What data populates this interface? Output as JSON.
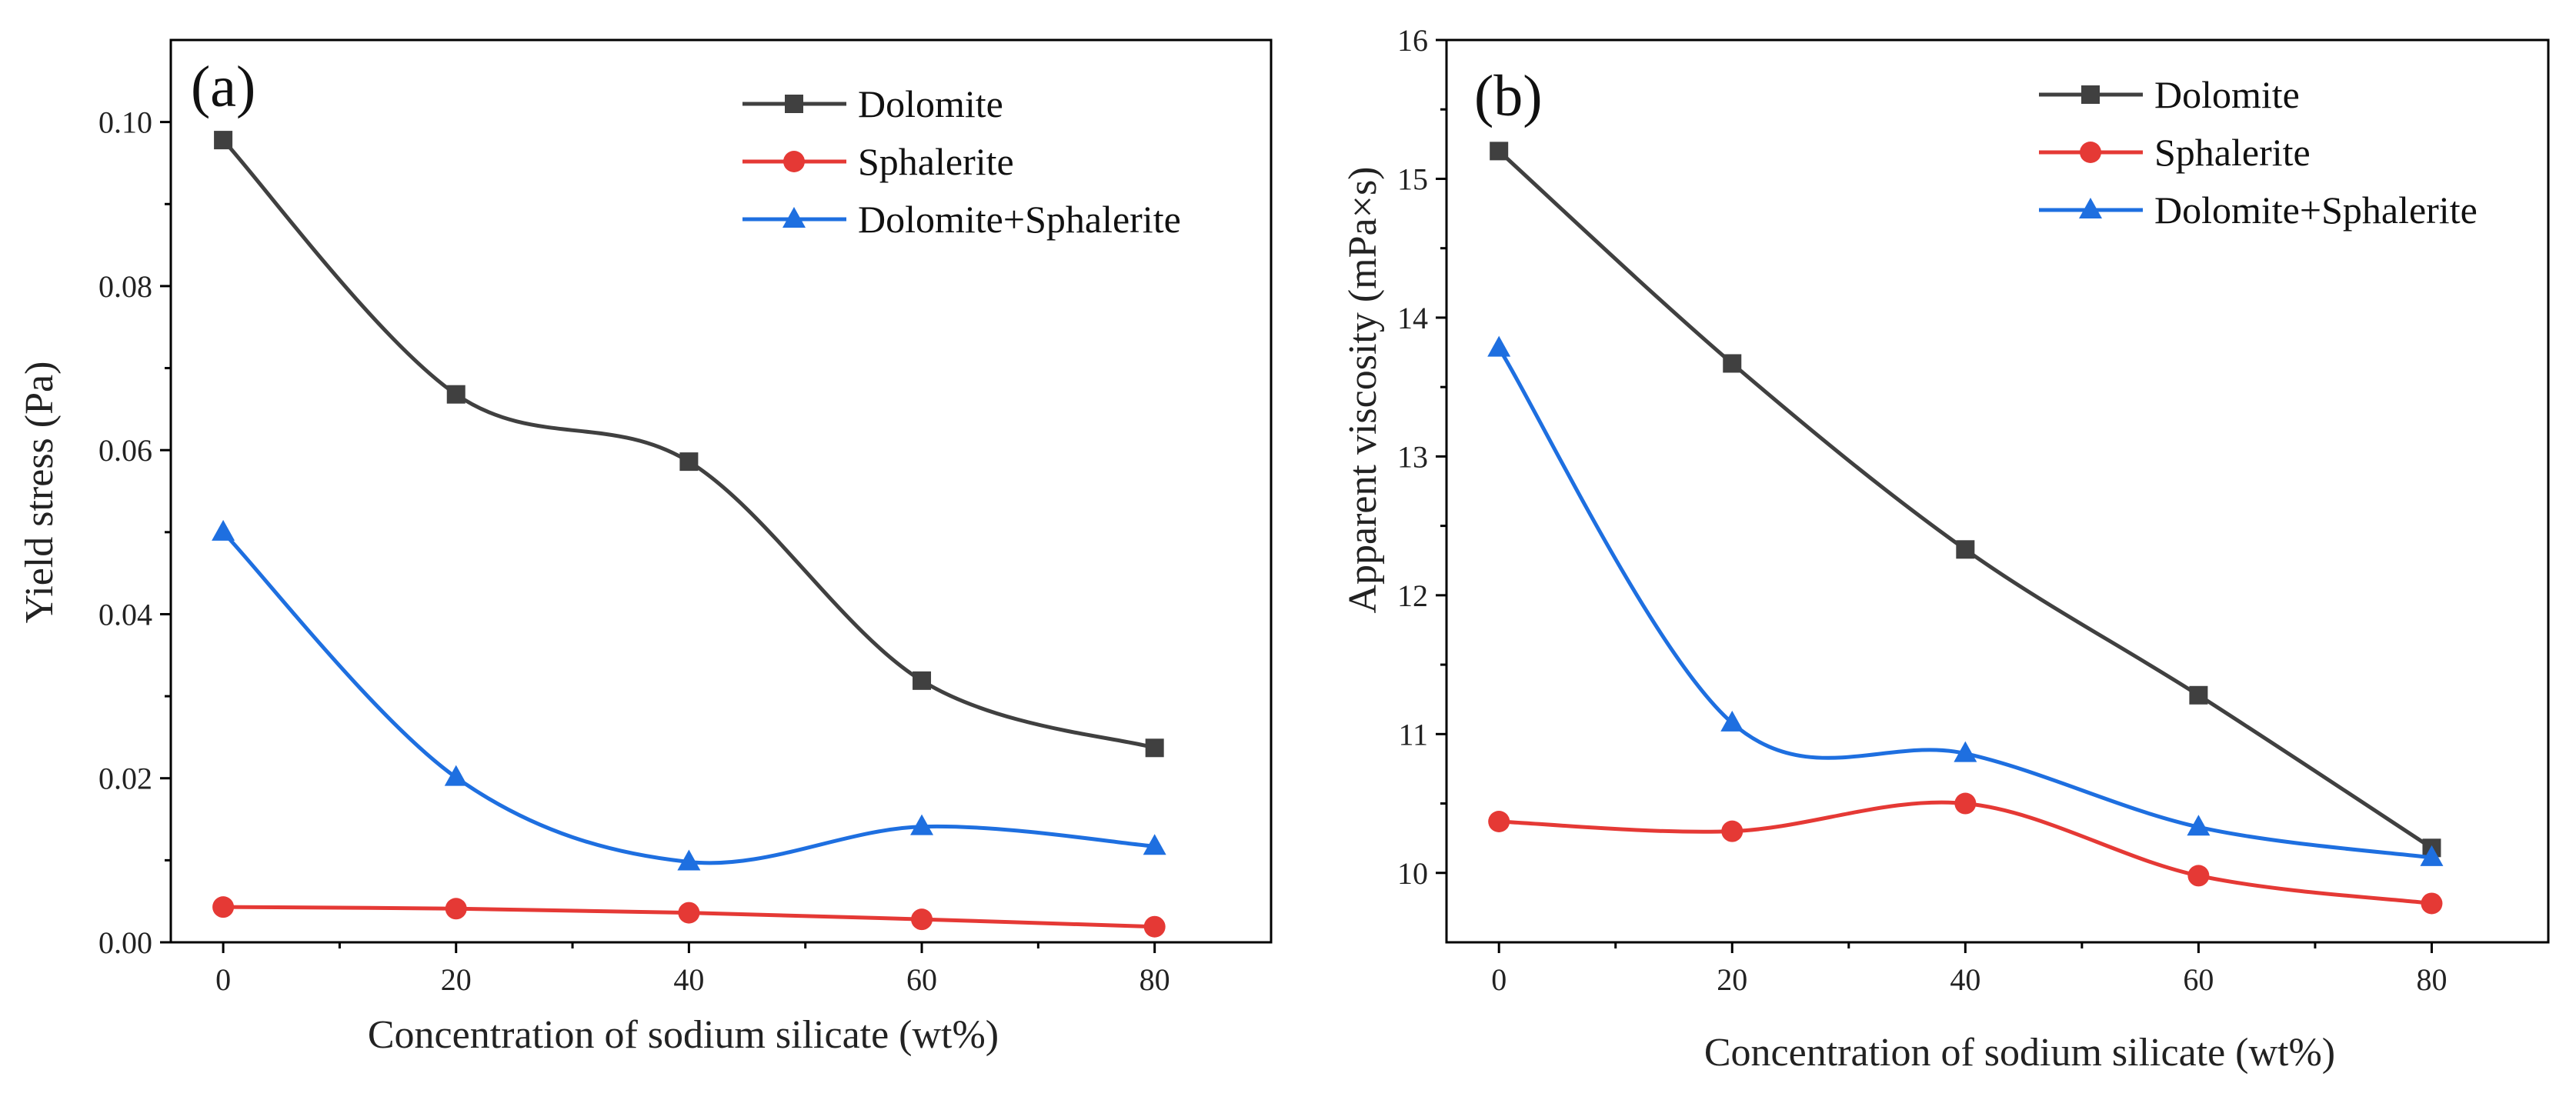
{
  "chart_data": [
    {
      "type": "line",
      "panel_label": "(a)",
      "xlabel": "Concentration of sodium silicate (wt%)",
      "ylabel": "Yield stress (Pa)",
      "x": [
        0,
        20,
        40,
        60,
        80
      ],
      "xlim": [
        -4.5,
        90
      ],
      "ylim": [
        0,
        0.11
      ],
      "xticks": [
        "0",
        "20",
        "40",
        "60",
        "80"
      ],
      "xtick_values": [
        0,
        20,
        40,
        60,
        80
      ],
      "yticks": [
        "0.00",
        "0.02",
        "0.04",
        "0.06",
        "0.08",
        "0.10"
      ],
      "ytick_values": [
        0,
        0.02,
        0.04,
        0.06,
        0.08,
        0.1
      ],
      "legend_position": "top-right",
      "series": [
        {
          "name": "Dolomite",
          "marker": "square",
          "color": "#404040",
          "values": [
            0.0978,
            0.0668,
            0.0586,
            0.0319,
            0.0237
          ]
        },
        {
          "name": "Sphalerite",
          "marker": "circle",
          "color": "#e53935",
          "values": [
            0.0043,
            0.0041,
            0.0036,
            0.0028,
            0.0019
          ]
        },
        {
          "name": "Dolomite+Sphalerite",
          "marker": "triangle",
          "color": "#1e6fe0",
          "values": [
            0.05,
            0.0201,
            0.0098,
            0.0141,
            0.0117
          ]
        }
      ]
    },
    {
      "type": "line",
      "panel_label": "(b)",
      "xlabel": "Concentration of sodium silicate (wt%)",
      "ylabel": "Apparent viscosity (mPa×s)",
      "x": [
        0,
        20,
        40,
        60,
        80
      ],
      "xlim": [
        -4.5,
        90
      ],
      "ylim": [
        9.5,
        16
      ],
      "xticks": [
        "0",
        "20",
        "40",
        "60",
        "80"
      ],
      "xtick_values": [
        0,
        20,
        40,
        60,
        80
      ],
      "yticks": [
        "10",
        "11",
        "12",
        "13",
        "14",
        "15",
        "16"
      ],
      "ytick_values": [
        10,
        11,
        12,
        13,
        14,
        15,
        16
      ],
      "legend_position": "top-right",
      "series": [
        {
          "name": "Dolomite",
          "marker": "square",
          "color": "#404040",
          "values": [
            15.2,
            13.67,
            12.33,
            11.28,
            10.18
          ]
        },
        {
          "name": "Sphalerite",
          "marker": "circle",
          "color": "#e53935",
          "values": [
            10.37,
            10.3,
            10.5,
            9.98,
            9.78
          ]
        },
        {
          "name": "Dolomite+Sphalerite",
          "marker": "triangle",
          "color": "#1e6fe0",
          "values": [
            13.78,
            11.08,
            10.86,
            10.33,
            10.11
          ]
        }
      ]
    }
  ]
}
